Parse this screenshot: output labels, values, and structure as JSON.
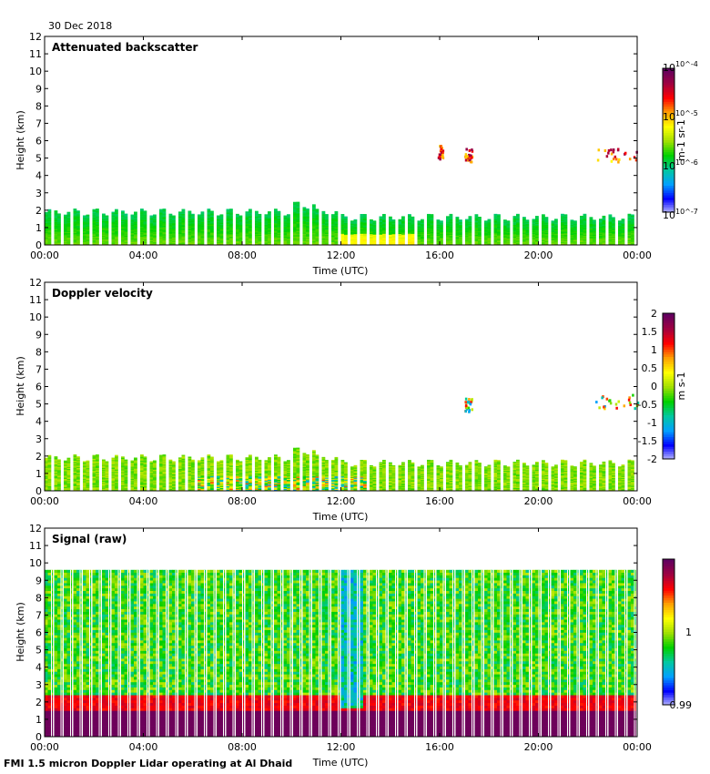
{
  "header": {
    "date": "30 Dec 2018"
  },
  "footer": {
    "caption": "FMI 1.5 micron Doppler Lidar operating at Al Dhaid"
  },
  "colors": {
    "background": "#ffffff",
    "colormap": [
      "#c0c0ff",
      "#0000ff",
      "#00a0ff",
      "#00c8a0",
      "#00d000",
      "#a0e000",
      "#ffff00",
      "#ffa000",
      "#ff0000",
      "#a00040",
      "#600060"
    ]
  },
  "chart_data": [
    {
      "type": "heatmap",
      "title": "Attenuated backscatter",
      "xlabel": "Time (UTC)",
      "ylabel": "Height (km)",
      "x_ticks": [
        "00:00",
        "04:00",
        "08:00",
        "12:00",
        "16:00",
        "20:00",
        "00:00"
      ],
      "xlim_hours": [
        0,
        24
      ],
      "y_ticks": [
        0,
        1,
        2,
        3,
        4,
        5,
        6,
        7,
        8,
        9,
        10,
        11,
        12
      ],
      "ylim_km": [
        0,
        12
      ],
      "colorbar": {
        "scale": "log",
        "range": [
          1e-07,
          0.0001
        ],
        "tick_labels": [
          "10^-4",
          "10^-5",
          "10^-6",
          "10^-7"
        ],
        "unit": "m-1 sr-1"
      },
      "features": [
        {
          "name": "boundary layer",
          "t_start": 0,
          "t_end": 24,
          "top_km": 1.9
        },
        {
          "name": "elevated layer",
          "t_start": 10.0,
          "t_end": 11.0,
          "top_km": 2.2
        },
        {
          "name": "cloud",
          "t_start": 15.9,
          "t_end": 16.1,
          "height_km": 5.4
        },
        {
          "name": "cloud",
          "t_start": 17.0,
          "t_end": 17.3,
          "height_km": 5.2
        },
        {
          "name": "cloud",
          "t_start": 22.2,
          "t_end": 24.0,
          "height_km": 5.2
        }
      ]
    },
    {
      "type": "heatmap",
      "title": "Doppler velocity",
      "xlabel": "Time (UTC)",
      "ylabel": "Height (km)",
      "x_ticks": [
        "00:00",
        "04:00",
        "08:00",
        "12:00",
        "16:00",
        "20:00",
        "00:00"
      ],
      "xlim_hours": [
        0,
        24
      ],
      "y_ticks": [
        0,
        1,
        2,
        3,
        4,
        5,
        6,
        7,
        8,
        9,
        10,
        11,
        12
      ],
      "ylim_km": [
        0,
        12
      ],
      "colorbar": {
        "scale": "linear",
        "range": [
          -2,
          2
        ],
        "tick_labels": [
          "2",
          "1.5",
          "1",
          "0.5",
          "0",
          "-0.5",
          "-1",
          "-1.5",
          "-2"
        ],
        "unit": "m s-1"
      },
      "features": [
        {
          "name": "boundary layer",
          "t_start": 0,
          "t_end": 24,
          "top_km": 1.9
        },
        {
          "name": "cloud",
          "t_start": 17.0,
          "t_end": 17.3,
          "height_km": 5.0
        },
        {
          "name": "cloud",
          "t_start": 22.2,
          "t_end": 24.0,
          "height_km": 5.2
        }
      ]
    },
    {
      "type": "heatmap",
      "title": "Signal (raw)",
      "xlabel": "Time (UTC)",
      "ylabel": "Height (km)",
      "x_ticks": [
        "00:00",
        "04:00",
        "08:00",
        "12:00",
        "16:00",
        "20:00",
        "00:00"
      ],
      "xlim_hours": [
        0,
        24
      ],
      "y_ticks": [
        0,
        1,
        2,
        3,
        4,
        5,
        6,
        7,
        8,
        9,
        10,
        11,
        12
      ],
      "ylim_km": [
        0,
        12
      ],
      "data_top_km": 9.6,
      "colorbar": {
        "scale": "linear",
        "range": [
          0.99,
          1.01
        ],
        "tick_labels": [
          "1",
          "0.99"
        ],
        "unit": ""
      },
      "features": [
        {
          "name": "strong near-surface signal",
          "t_start": 0,
          "t_end": 24,
          "top_km": 1.5
        },
        {
          "name": "low-signal column",
          "t_start": 12.0,
          "t_end": 12.9
        }
      ]
    }
  ]
}
